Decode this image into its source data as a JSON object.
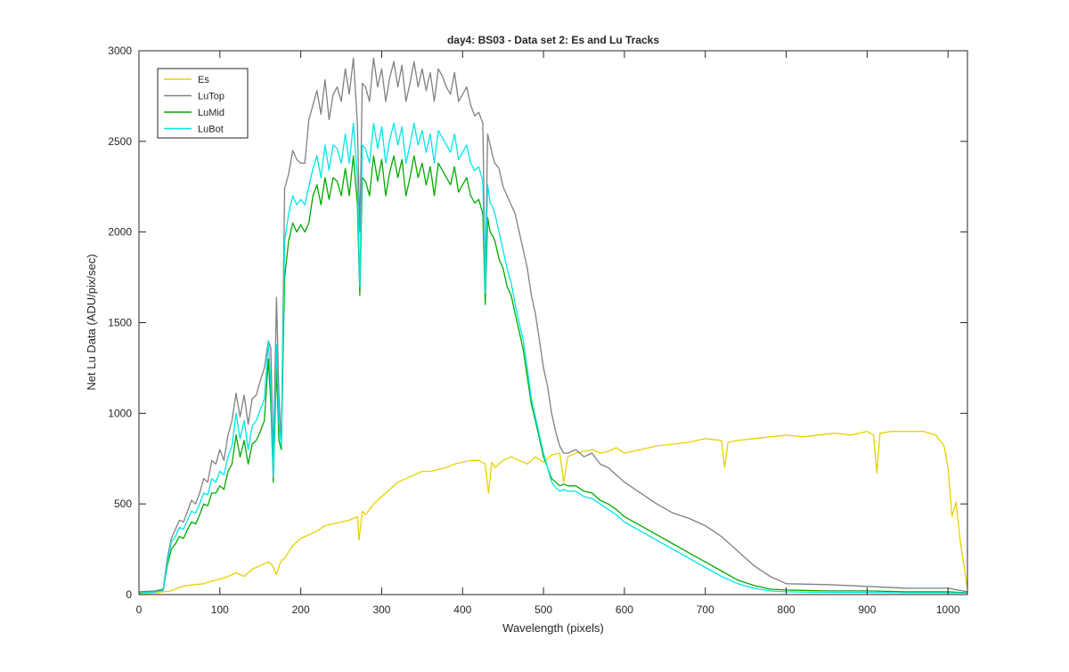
{
  "chart_data": {
    "type": "line",
    "title": "day4: BS03 - Data set 2: Es and Lu Tracks",
    "xlabel": "Wavelength (pixels)",
    "ylabel": "Net Lu Data (ADU/pix/sec)",
    "xlim": [
      0,
      1024
    ],
    "ylim": [
      0,
      3000
    ],
    "xticks": [
      0,
      100,
      200,
      300,
      400,
      500,
      600,
      700,
      800,
      900,
      1000
    ],
    "yticks": [
      0,
      500,
      1000,
      1500,
      2000,
      2500,
      3000
    ],
    "xtick_labels": [
      "0",
      "100",
      "200",
      "300",
      "400",
      "500",
      "600",
      "700",
      "800",
      "900",
      "1000"
    ],
    "ytick_labels": [
      "0",
      "500",
      "1000",
      "1500",
      "2000",
      "2500",
      "3000"
    ],
    "grid": false,
    "legend_position": "top-left",
    "series": [
      {
        "name": "Es",
        "color": "#e6d200",
        "x": [
          0,
          20,
          30,
          40,
          50,
          60,
          70,
          80,
          90,
          100,
          110,
          120,
          130,
          140,
          150,
          160,
          165,
          170,
          175,
          180,
          190,
          200,
          210,
          220,
          230,
          240,
          250,
          260,
          270,
          272,
          276,
          280,
          290,
          300,
          310,
          320,
          330,
          340,
          350,
          360,
          370,
          380,
          390,
          400,
          410,
          420,
          428,
          432,
          436,
          440,
          450,
          460,
          470,
          480,
          490,
          500,
          510,
          520,
          525,
          530,
          540,
          550,
          560,
          570,
          580,
          590,
          600,
          620,
          640,
          660,
          680,
          700,
          720,
          724,
          728,
          740,
          760,
          780,
          800,
          820,
          840,
          860,
          880,
          900,
          908,
          912,
          916,
          930,
          950,
          970,
          985,
          995,
          1000,
          1005,
          1010,
          1015,
          1024
        ],
        "values": [
          5,
          8,
          15,
          20,
          40,
          50,
          55,
          60,
          75,
          85,
          100,
          120,
          100,
          140,
          160,
          180,
          160,
          110,
          180,
          200,
          270,
          310,
          330,
          350,
          380,
          390,
          400,
          410,
          430,
          300,
          460,
          440,
          500,
          540,
          580,
          620,
          640,
          660,
          680,
          680,
          690,
          700,
          720,
          730,
          740,
          740,
          720,
          560,
          730,
          700,
          740,
          760,
          740,
          720,
          760,
          730,
          770,
          780,
          620,
          760,
          780,
          790,
          800,
          780,
          790,
          810,
          780,
          800,
          820,
          830,
          840,
          860,
          850,
          700,
          840,
          850,
          860,
          870,
          880,
          870,
          880,
          890,
          880,
          900,
          880,
          670,
          890,
          900,
          900,
          900,
          880,
          820,
          700,
          430,
          510,
          300,
          30
        ]
      },
      {
        "name": "LuTop",
        "color": "#808080",
        "x": [
          0,
          20,
          30,
          35,
          40,
          45,
          50,
          55,
          60,
          65,
          70,
          75,
          80,
          85,
          90,
          95,
          100,
          105,
          110,
          115,
          120,
          125,
          130,
          135,
          140,
          145,
          150,
          155,
          160,
          163,
          166,
          170,
          173,
          176,
          180,
          185,
          190,
          195,
          200,
          205,
          210,
          215,
          220,
          225,
          230,
          235,
          240,
          245,
          250,
          255,
          260,
          265,
          270,
          273,
          276,
          280,
          285,
          290,
          295,
          300,
          305,
          310,
          315,
          320,
          325,
          330,
          335,
          340,
          345,
          350,
          355,
          360,
          365,
          370,
          375,
          380,
          385,
          390,
          395,
          400,
          405,
          410,
          415,
          420,
          425,
          428,
          431,
          434,
          437,
          440,
          445,
          450,
          455,
          460,
          465,
          470,
          475,
          480,
          485,
          490,
          495,
          500,
          505,
          510,
          515,
          520,
          525,
          530,
          540,
          550,
          560,
          570,
          580,
          590,
          600,
          620,
          640,
          660,
          680,
          700,
          720,
          740,
          760,
          780,
          800,
          850,
          900,
          950,
          1000,
          1024
        ],
        "values": [
          15,
          20,
          30,
          200,
          310,
          360,
          410,
          400,
          460,
          520,
          500,
          560,
          640,
          620,
          740,
          720,
          800,
          740,
          880,
          960,
          1110,
          980,
          1100,
          940,
          1080,
          1100,
          1180,
          1250,
          1400,
          1360,
          760,
          1640,
          1100,
          820,
          2240,
          2320,
          2450,
          2400,
          2380,
          2380,
          2620,
          2700,
          2780,
          2650,
          2840,
          2620,
          2760,
          2800,
          2720,
          2900,
          2760,
          2960,
          2600,
          2000,
          2820,
          2800,
          2720,
          2960,
          2800,
          2900,
          2720,
          2850,
          2940,
          2800,
          2920,
          2720,
          2820,
          2940,
          2800,
          2900,
          2780,
          2880,
          2720,
          2900,
          2860,
          2800,
          2760,
          2880,
          2720,
          2760,
          2800,
          2700,
          2640,
          2660,
          2600,
          1700,
          2540,
          2480,
          2420,
          2380,
          2350,
          2250,
          2200,
          2150,
          2100,
          2000,
          1900,
          1800,
          1650,
          1550,
          1400,
          1250,
          1150,
          1000,
          900,
          820,
          780,
          780,
          800,
          760,
          780,
          720,
          700,
          660,
          620,
          560,
          500,
          450,
          420,
          380,
          320,
          240,
          160,
          100,
          60,
          55,
          45,
          35,
          35,
          15
        ]
      },
      {
        "name": "LuMid",
        "color": "#00aa00",
        "x": [
          0,
          20,
          30,
          35,
          40,
          45,
          50,
          55,
          60,
          65,
          70,
          75,
          80,
          85,
          90,
          95,
          100,
          105,
          110,
          115,
          120,
          125,
          130,
          135,
          140,
          145,
          150,
          155,
          160,
          163,
          166,
          170,
          173,
          176,
          180,
          185,
          190,
          195,
          200,
          205,
          210,
          215,
          220,
          225,
          230,
          235,
          240,
          245,
          250,
          255,
          260,
          265,
          270,
          273,
          276,
          280,
          285,
          290,
          295,
          300,
          305,
          310,
          315,
          320,
          325,
          330,
          335,
          340,
          345,
          350,
          355,
          360,
          365,
          370,
          375,
          380,
          385,
          390,
          395,
          400,
          405,
          410,
          415,
          420,
          425,
          428,
          431,
          434,
          437,
          440,
          445,
          450,
          455,
          460,
          465,
          470,
          475,
          480,
          485,
          490,
          495,
          500,
          505,
          510,
          515,
          520,
          525,
          530,
          540,
          550,
          560,
          570,
          580,
          590,
          600,
          620,
          640,
          660,
          680,
          700,
          720,
          740,
          760,
          780,
          800,
          850,
          900,
          950,
          1000,
          1024
        ],
        "values": [
          12,
          15,
          25,
          160,
          250,
          280,
          320,
          310,
          360,
          400,
          390,
          440,
          500,
          490,
          560,
          560,
          600,
          580,
          680,
          720,
          880,
          760,
          850,
          720,
          830,
          850,
          900,
          960,
          1300,
          1050,
          620,
          1250,
          850,
          800,
          1750,
          1950,
          2050,
          2000,
          2040,
          2000,
          2050,
          2200,
          2260,
          2150,
          2300,
          2180,
          2300,
          2280,
          2200,
          2350,
          2200,
          2420,
          2150,
          1650,
          2300,
          2280,
          2200,
          2420,
          2280,
          2400,
          2200,
          2330,
          2420,
          2300,
          2400,
          2200,
          2300,
          2420,
          2300,
          2380,
          2260,
          2360,
          2200,
          2380,
          2340,
          2300,
          2260,
          2360,
          2220,
          2260,
          2300,
          2200,
          2160,
          2180,
          2100,
          1600,
          2080,
          2000,
          1980,
          1950,
          1850,
          1800,
          1700,
          1650,
          1550,
          1450,
          1350,
          1200,
          1050,
          960,
          860,
          760,
          700,
          640,
          620,
          600,
          610,
          600,
          600,
          570,
          560,
          520,
          500,
          470,
          430,
          380,
          330,
          280,
          230,
          180,
          130,
          80,
          50,
          30,
          25,
          20,
          20,
          15,
          15,
          10
        ]
      },
      {
        "name": "LuBot",
        "color": "#00e6e6",
        "x": [
          0,
          20,
          30,
          35,
          40,
          45,
          50,
          55,
          60,
          65,
          70,
          75,
          80,
          85,
          90,
          95,
          100,
          105,
          110,
          115,
          120,
          125,
          130,
          135,
          140,
          145,
          150,
          155,
          160,
          163,
          166,
          170,
          173,
          176,
          180,
          185,
          190,
          195,
          200,
          205,
          210,
          215,
          220,
          225,
          230,
          235,
          240,
          245,
          250,
          255,
          260,
          265,
          270,
          273,
          276,
          280,
          285,
          290,
          295,
          300,
          305,
          310,
          315,
          320,
          325,
          330,
          335,
          340,
          345,
          350,
          355,
          360,
          365,
          370,
          375,
          380,
          385,
          390,
          395,
          400,
          405,
          410,
          415,
          420,
          425,
          428,
          431,
          434,
          437,
          440,
          445,
          450,
          455,
          460,
          465,
          470,
          475,
          480,
          485,
          490,
          495,
          500,
          505,
          510,
          515,
          520,
          525,
          530,
          540,
          550,
          560,
          570,
          580,
          590,
          600,
          620,
          640,
          660,
          680,
          700,
          720,
          740,
          760,
          780,
          800,
          850,
          900,
          950,
          1000,
          1024
        ],
        "values": [
          10,
          14,
          22,
          180,
          290,
          320,
          370,
          360,
          410,
          460,
          450,
          500,
          560,
          550,
          640,
          620,
          680,
          660,
          760,
          820,
          1000,
          860,
          960,
          800,
          930,
          960,
          1020,
          1080,
          1400,
          1150,
          650,
          1380,
          950,
          820,
          1950,
          2100,
          2200,
          2150,
          2180,
          2150,
          2250,
          2350,
          2420,
          2300,
          2480,
          2340,
          2480,
          2460,
          2380,
          2540,
          2380,
          2600,
          2300,
          1700,
          2480,
          2460,
          2380,
          2600,
          2460,
          2580,
          2380,
          2510,
          2600,
          2480,
          2580,
          2380,
          2480,
          2600,
          2480,
          2560,
          2440,
          2540,
          2380,
          2560,
          2520,
          2480,
          2440,
          2540,
          2400,
          2440,
          2480,
          2380,
          2340,
          2360,
          2280,
          1660,
          2260,
          2160,
          2140,
          2100,
          2000,
          1900,
          1800,
          1720,
          1600,
          1500,
          1400,
          1250,
          1080,
          980,
          880,
          780,
          700,
          620,
          590,
          570,
          580,
          570,
          570,
          540,
          530,
          500,
          470,
          440,
          400,
          350,
          300,
          250,
          200,
          150,
          100,
          60,
          35,
          20,
          15,
          12,
          12,
          10,
          10,
          8
        ]
      }
    ]
  }
}
